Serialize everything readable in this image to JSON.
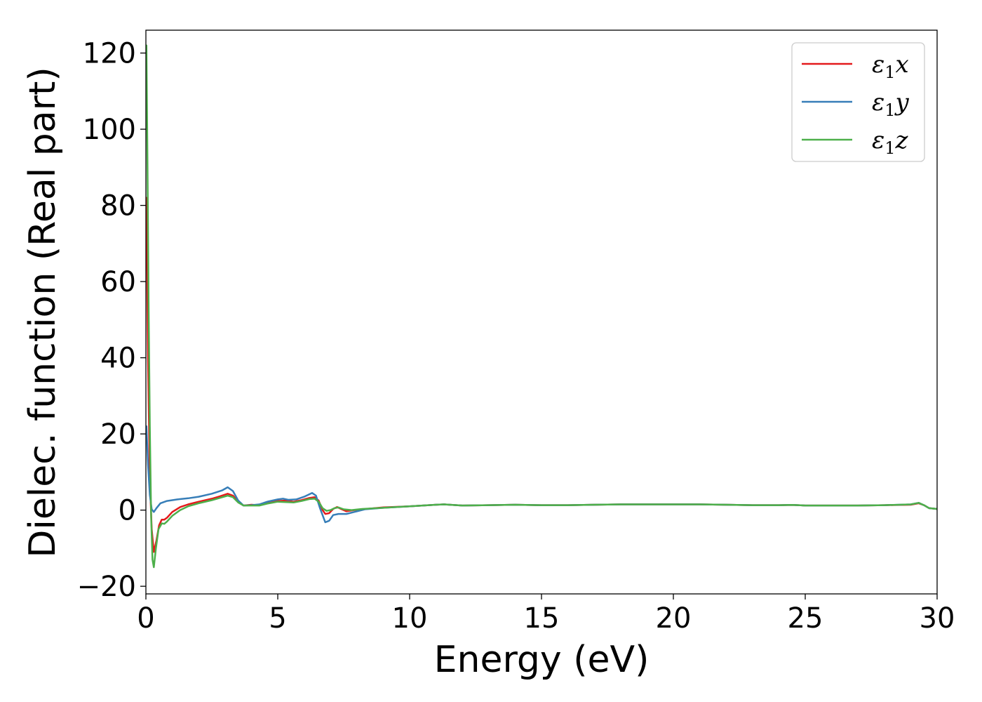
{
  "chart_data": {
    "type": "line",
    "title": "",
    "xlabel": "Energy (eV)",
    "ylabel": "Dielec. function (Real part)",
    "xlim": [
      0,
      30
    ],
    "ylim": [
      -22,
      126
    ],
    "xticks": [
      0,
      5,
      10,
      15,
      20,
      25,
      30
    ],
    "yticks": [
      -20,
      0,
      20,
      40,
      60,
      80,
      100,
      120
    ],
    "grid": false,
    "legend_position": "top-right",
    "series": [
      {
        "name": "ε₁x",
        "symbol": "ε",
        "subscript": "1",
        "axis": "x",
        "color": "#e41a1c",
        "points": [
          [
            0.02,
            82
          ],
          [
            0.08,
            40
          ],
          [
            0.15,
            8
          ],
          [
            0.22,
            -5
          ],
          [
            0.3,
            -11
          ],
          [
            0.4,
            -8
          ],
          [
            0.5,
            -4
          ],
          [
            0.6,
            -2.5
          ],
          [
            0.7,
            -2.5
          ],
          [
            0.8,
            -2
          ],
          [
            1.0,
            -0.5
          ],
          [
            1.3,
            0.8
          ],
          [
            1.6,
            1.5
          ],
          [
            2.0,
            2.2
          ],
          [
            2.5,
            3
          ],
          [
            2.8,
            3.6
          ],
          [
            3.1,
            4.3
          ],
          [
            3.3,
            3.8
          ],
          [
            3.5,
            2.2
          ],
          [
            3.7,
            1.2
          ],
          [
            4.0,
            1.4
          ],
          [
            4.3,
            1.3
          ],
          [
            4.6,
            1.8
          ],
          [
            5.0,
            2.4
          ],
          [
            5.3,
            2.5
          ],
          [
            5.6,
            2.2
          ],
          [
            5.9,
            2.6
          ],
          [
            6.2,
            3.2
          ],
          [
            6.4,
            3.4
          ],
          [
            6.55,
            2.5
          ],
          [
            6.7,
            0
          ],
          [
            6.8,
            -1
          ],
          [
            6.95,
            -0.8
          ],
          [
            7.1,
            0.3
          ],
          [
            7.25,
            0.8
          ],
          [
            7.4,
            0.3
          ],
          [
            7.6,
            -0.3
          ],
          [
            7.9,
            0
          ],
          [
            8.5,
            0.4
          ],
          [
            9,
            0.7
          ],
          [
            10,
            1
          ],
          [
            11,
            1.4
          ],
          [
            11.3,
            1.5
          ],
          [
            12,
            1.2
          ],
          [
            13,
            1.3
          ],
          [
            14,
            1.4
          ],
          [
            15,
            1.3
          ],
          [
            16,
            1.3
          ],
          [
            17,
            1.4
          ],
          [
            18,
            1.5
          ],
          [
            19,
            1.5
          ],
          [
            20,
            1.5
          ],
          [
            21,
            1.5
          ],
          [
            22,
            1.4
          ],
          [
            23,
            1.3
          ],
          [
            24,
            1.3
          ],
          [
            24.5,
            1.35
          ],
          [
            25,
            1.2
          ],
          [
            26,
            1.2
          ],
          [
            27,
            1.2
          ],
          [
            28,
            1.3
          ],
          [
            29,
            1.4
          ],
          [
            29.3,
            1.8
          ],
          [
            29.5,
            1.3
          ],
          [
            29.7,
            0.5
          ],
          [
            30,
            0.3
          ]
        ]
      },
      {
        "name": "ε₁y",
        "symbol": "ε",
        "subscript": "1",
        "axis": "y",
        "color": "#377eb8",
        "points": [
          [
            0.02,
            22
          ],
          [
            0.08,
            12
          ],
          [
            0.15,
            4
          ],
          [
            0.22,
            0.2
          ],
          [
            0.3,
            -0.5
          ],
          [
            0.4,
            0.5
          ],
          [
            0.55,
            1.8
          ],
          [
            0.8,
            2.4
          ],
          [
            1.2,
            2.8
          ],
          [
            1.6,
            3.1
          ],
          [
            2.0,
            3.5
          ],
          [
            2.5,
            4.3
          ],
          [
            2.9,
            5.2
          ],
          [
            3.1,
            6
          ],
          [
            3.3,
            5
          ],
          [
            3.5,
            2.5
          ],
          [
            3.7,
            1.2
          ],
          [
            4.0,
            1.3
          ],
          [
            4.3,
            1.5
          ],
          [
            4.6,
            2.2
          ],
          [
            5.0,
            2.8
          ],
          [
            5.2,
            3
          ],
          [
            5.4,
            2.7
          ],
          [
            5.7,
            2.8
          ],
          [
            6.0,
            3.5
          ],
          [
            6.3,
            4.5
          ],
          [
            6.45,
            3.8
          ],
          [
            6.6,
            0.5
          ],
          [
            6.8,
            -3.2
          ],
          [
            6.95,
            -2.8
          ],
          [
            7.1,
            -1.3
          ],
          [
            7.3,
            -1
          ],
          [
            7.6,
            -1
          ],
          [
            7.9,
            -0.5
          ],
          [
            8.3,
            0.2
          ],
          [
            9,
            0.6
          ],
          [
            10,
            1
          ],
          [
            11,
            1.4
          ],
          [
            11.3,
            1.5
          ],
          [
            12,
            1.2
          ],
          [
            13,
            1.3
          ],
          [
            14,
            1.4
          ],
          [
            15,
            1.3
          ],
          [
            16,
            1.3
          ],
          [
            17,
            1.4
          ],
          [
            18,
            1.5
          ],
          [
            19,
            1.5
          ],
          [
            20,
            1.5
          ],
          [
            21,
            1.5
          ],
          [
            22,
            1.4
          ],
          [
            23,
            1.3
          ],
          [
            24,
            1.3
          ],
          [
            24.5,
            1.35
          ],
          [
            25,
            1.2
          ],
          [
            26,
            1.2
          ],
          [
            27,
            1.2
          ],
          [
            28,
            1.3
          ],
          [
            29,
            1.5
          ],
          [
            29.3,
            1.9
          ],
          [
            29.5,
            1.3
          ],
          [
            29.7,
            0.5
          ],
          [
            30,
            0.3
          ]
        ]
      },
      {
        "name": "ε₁z",
        "symbol": "ε",
        "subscript": "1",
        "axis": "z",
        "color": "#4daf4a",
        "points": [
          [
            0.02,
            122
          ],
          [
            0.06,
            90
          ],
          [
            0.1,
            55
          ],
          [
            0.15,
            22
          ],
          [
            0.2,
            -2
          ],
          [
            0.25,
            -13
          ],
          [
            0.3,
            -15
          ],
          [
            0.38,
            -10
          ],
          [
            0.48,
            -5
          ],
          [
            0.6,
            -3.5
          ],
          [
            0.7,
            -3.6
          ],
          [
            0.8,
            -3
          ],
          [
            1.0,
            -1.5
          ],
          [
            1.3,
            0
          ],
          [
            1.6,
            1
          ],
          [
            2.0,
            1.8
          ],
          [
            2.5,
            2.6
          ],
          [
            2.8,
            3.2
          ],
          [
            3.1,
            3.8
          ],
          [
            3.3,
            3.4
          ],
          [
            3.5,
            2
          ],
          [
            3.7,
            1.2
          ],
          [
            4.0,
            1.2
          ],
          [
            4.3,
            1.2
          ],
          [
            4.6,
            1.7
          ],
          [
            5.0,
            2.2
          ],
          [
            5.3,
            2.1
          ],
          [
            5.6,
            2
          ],
          [
            5.9,
            2.4
          ],
          [
            6.2,
            2.9
          ],
          [
            6.4,
            3
          ],
          [
            6.55,
            2.2
          ],
          [
            6.7,
            0.5
          ],
          [
            6.85,
            -0.2
          ],
          [
            7.0,
            0
          ],
          [
            7.15,
            0.5
          ],
          [
            7.3,
            0.7
          ],
          [
            7.5,
            0.2
          ],
          [
            7.8,
            0
          ],
          [
            8.2,
            0.3
          ],
          [
            9,
            0.6
          ],
          [
            10,
            1
          ],
          [
            11,
            1.4
          ],
          [
            11.3,
            1.5
          ],
          [
            12,
            1.2
          ],
          [
            13,
            1.3
          ],
          [
            14,
            1.4
          ],
          [
            15,
            1.3
          ],
          [
            16,
            1.3
          ],
          [
            17,
            1.4
          ],
          [
            18,
            1.5
          ],
          [
            19,
            1.5
          ],
          [
            20,
            1.5
          ],
          [
            21,
            1.5
          ],
          [
            22,
            1.4
          ],
          [
            23,
            1.3
          ],
          [
            24,
            1.3
          ],
          [
            24.5,
            1.35
          ],
          [
            25,
            1.2
          ],
          [
            26,
            1.2
          ],
          [
            27,
            1.2
          ],
          [
            28,
            1.3
          ],
          [
            29,
            1.5
          ],
          [
            29.3,
            1.9
          ],
          [
            29.5,
            1.3
          ],
          [
            29.7,
            0.5
          ],
          [
            30,
            0.3
          ]
        ]
      }
    ]
  }
}
